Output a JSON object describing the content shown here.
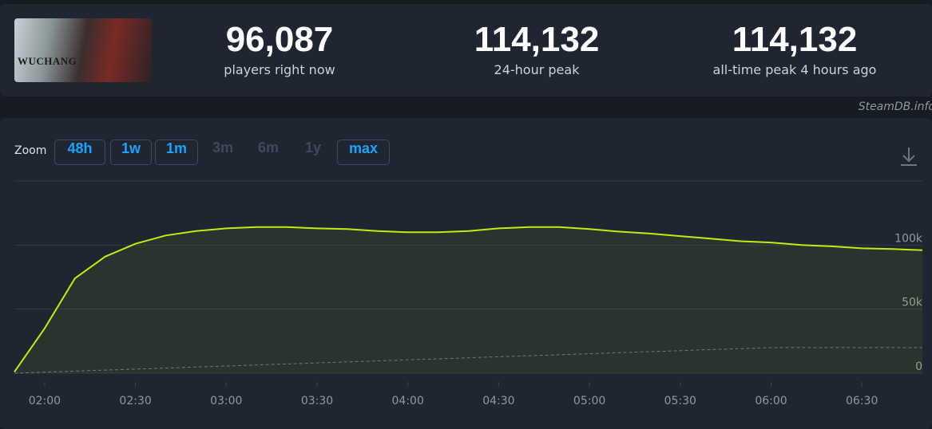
{
  "header": {
    "image_text": "WUCHANG",
    "stats": [
      {
        "value": "96,087",
        "label": "players right now"
      },
      {
        "value": "114,132",
        "label": "24-hour peak"
      },
      {
        "value": "114,132",
        "label": "all-time peak 4 hours ago"
      }
    ],
    "credit": "SteamDB.info"
  },
  "zoom": {
    "label": "Zoom",
    "buttons": [
      {
        "label": "48h",
        "enabled": true
      },
      {
        "label": "1w",
        "enabled": true
      },
      {
        "label": "1m",
        "enabled": true
      },
      {
        "label": "3m",
        "enabled": false
      },
      {
        "label": "6m",
        "enabled": false
      },
      {
        "label": "1y",
        "enabled": false
      },
      {
        "label": "max",
        "enabled": true
      }
    ]
  },
  "chart_data": {
    "type": "line",
    "x": [
      "01:50",
      "02:00",
      "02:10",
      "02:20",
      "02:30",
      "02:40",
      "02:50",
      "03:00",
      "03:10",
      "03:20",
      "03:30",
      "03:40",
      "03:50",
      "04:00",
      "04:10",
      "04:20",
      "04:30",
      "04:40",
      "04:50",
      "05:00",
      "05:10",
      "05:20",
      "05:30",
      "05:40",
      "05:50",
      "06:00",
      "06:10",
      "06:20",
      "06:30",
      "06:40",
      "06:50"
    ],
    "xticks": [
      "02:00",
      "02:30",
      "03:00",
      "03:30",
      "04:00",
      "04:30",
      "05:00",
      "05:30",
      "06:00",
      "06:30"
    ],
    "series": [
      {
        "color": "#beee11",
        "style": "solid",
        "values": [
          1000,
          35000,
          74000,
          91000,
          101000,
          107500,
          111000,
          113000,
          114000,
          114000,
          113000,
          112500,
          111000,
          110000,
          110000,
          111000,
          113000,
          114000,
          114000,
          112500,
          110500,
          109000,
          107000,
          105000,
          103000,
          102000,
          100000,
          99000,
          97500,
          97000,
          96000
        ]
      },
      {
        "color": "#6a7585",
        "style": "dashed",
        "values": [
          0,
          800,
          1600,
          2400,
          3200,
          4000,
          4800,
          5600,
          6400,
          7200,
          8000,
          8800,
          9600,
          10400,
          11200,
          12000,
          12800,
          13600,
          14400,
          15200,
          16000,
          16800,
          17600,
          18400,
          19200,
          20000,
          20000,
          20000,
          20000,
          20000,
          20000
        ]
      }
    ],
    "ylim": [
      0,
      150000
    ],
    "yticks": [
      0,
      {
        "value": 50000,
        "label": "50k"
      },
      {
        "value": 100000,
        "label": "100k"
      }
    ],
    "grid": true
  }
}
